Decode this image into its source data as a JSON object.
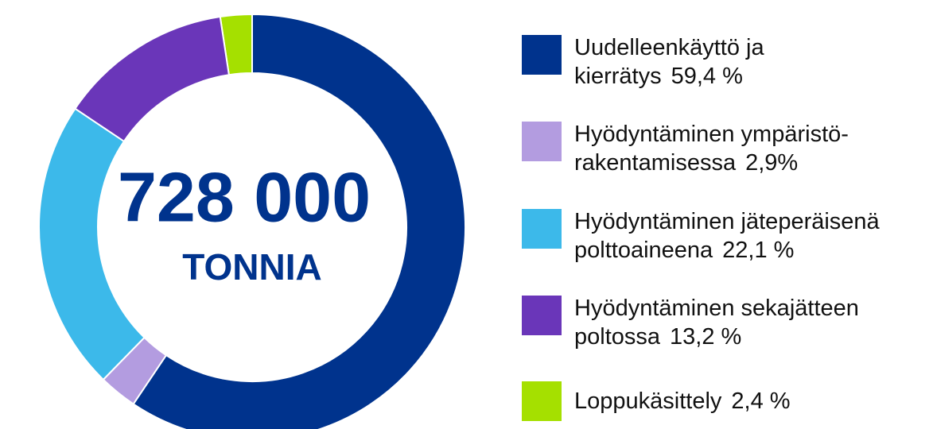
{
  "chart_data": {
    "type": "donut",
    "center_value": "728 000",
    "center_unit": "TONNIA",
    "categories": [
      "Uudelleenkäyttö ja\nkierrätys",
      "Hyödyntäminen ympäristö-\nrakentamisessa",
      "Hyödyntäminen jäteperäisenä\npolttoaineena",
      "Hyödyntäminen sekajätteen\npoltossa",
      "Loppukäsittely"
    ],
    "values": [
      59.4,
      2.9,
      22.1,
      13.2,
      2.4
    ],
    "value_labels": [
      "59,4 %",
      "2,9%",
      "22,1 %",
      "13,2 %",
      "2,4 %"
    ],
    "colors": [
      "#00338d",
      "#b39ce0",
      "#3cb9ea",
      "#6a36b9",
      "#a5e000"
    ]
  }
}
